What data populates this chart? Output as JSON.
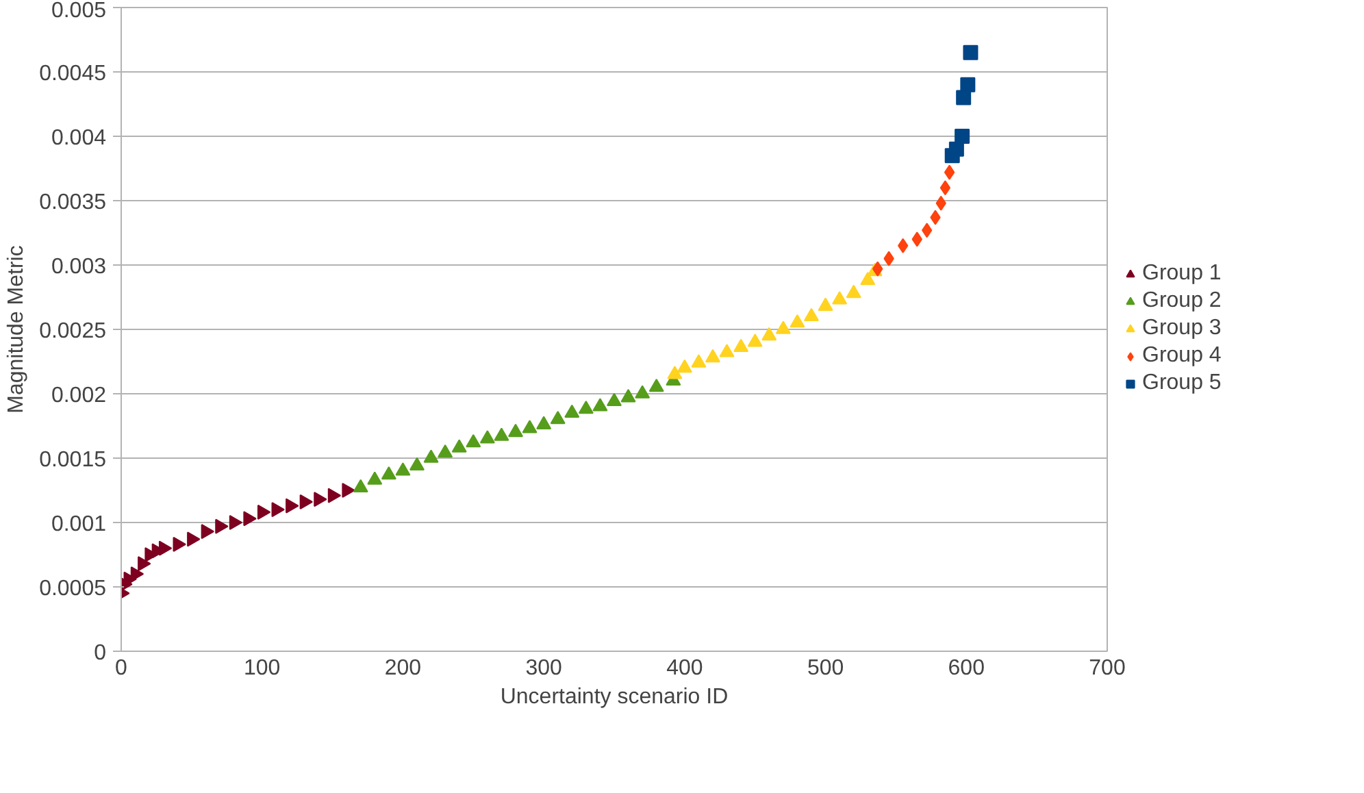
{
  "chart_data": {
    "type": "scatter",
    "xlabel": "Uncertainty scenario ID",
    "ylabel": "Magnitude Metric",
    "xlim": [
      0,
      700
    ],
    "xticks": [
      0,
      100,
      200,
      300,
      400,
      500,
      600,
      700
    ],
    "ylim": [
      0,
      0.005
    ],
    "yticks": [
      0,
      0.0005,
      0.001,
      0.0015,
      0.002,
      0.0025,
      0.003,
      0.0035,
      0.004,
      0.0045,
      0.005
    ],
    "grid": "y",
    "legend": "right",
    "series": [
      {
        "name": "Group 1",
        "color": "#7e0021",
        "marker": "triangle_right",
        "x": [
          0,
          2,
          5,
          10,
          15,
          20,
          25,
          30,
          40,
          50,
          60,
          70,
          80,
          90,
          100,
          110,
          120,
          130,
          140,
          150,
          160
        ],
        "values": [
          0.00045,
          0.00052,
          0.00056,
          0.0006,
          0.00068,
          0.00075,
          0.00078,
          0.0008,
          0.00083,
          0.00087,
          0.00093,
          0.00097,
          0.001,
          0.00103,
          0.00108,
          0.0011,
          0.00113,
          0.00116,
          0.00118,
          0.00121,
          0.00125
        ]
      },
      {
        "name": "Group 2",
        "color": "#579d1c",
        "marker": "triangle",
        "x": [
          170,
          180,
          190,
          200,
          210,
          220,
          230,
          240,
          250,
          260,
          270,
          280,
          290,
          300,
          310,
          320,
          330,
          340,
          350,
          360,
          370,
          380,
          392
        ],
        "values": [
          0.00127,
          0.00133,
          0.00137,
          0.0014,
          0.00144,
          0.0015,
          0.00154,
          0.00158,
          0.00162,
          0.00165,
          0.00167,
          0.0017,
          0.00173,
          0.00176,
          0.0018,
          0.00185,
          0.00188,
          0.0019,
          0.00194,
          0.00197,
          0.002,
          0.00205,
          0.0021
        ]
      },
      {
        "name": "Group 3",
        "color": "#ffd320",
        "marker": "triangle",
        "x": [
          393,
          400,
          410,
          420,
          430,
          440,
          450,
          460,
          470,
          480,
          490,
          500,
          510,
          520,
          530,
          535
        ],
        "values": [
          0.00215,
          0.0022,
          0.00224,
          0.00228,
          0.00232,
          0.00236,
          0.0024,
          0.00245,
          0.0025,
          0.00255,
          0.0026,
          0.00268,
          0.00273,
          0.00278,
          0.00288,
          0.00295
        ]
      },
      {
        "name": "Group 4",
        "color": "#ff420e",
        "marker": "diamond",
        "x": [
          537,
          545,
          555,
          565,
          572,
          578,
          582,
          585,
          588
        ],
        "values": [
          0.00297,
          0.00305,
          0.00315,
          0.0032,
          0.00327,
          0.00337,
          0.00348,
          0.0036,
          0.00372
        ]
      },
      {
        "name": "Group 5",
        "color": "#004586",
        "marker": "square",
        "x": [
          590,
          593,
          597,
          598,
          601,
          603
        ],
        "values": [
          0.00385,
          0.0039,
          0.004,
          0.0043,
          0.0044,
          0.00465
        ]
      }
    ]
  }
}
